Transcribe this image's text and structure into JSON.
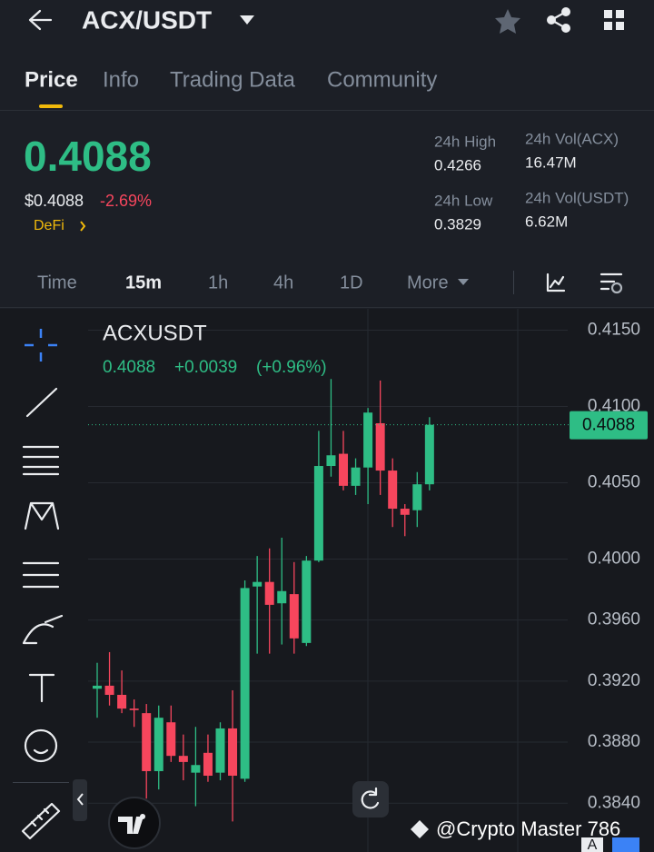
{
  "header": {
    "title": "ACX/USDT"
  },
  "tabs": [
    "Price",
    "Info",
    "Trading Data",
    "Community"
  ],
  "ticker": {
    "price": "0.4088",
    "price_usd": "$0.4088",
    "change": "-2.69%",
    "tag": "DeFi"
  },
  "stats": [
    {
      "label": "24h High",
      "value": "0.4266"
    },
    {
      "label": "24h Vol(ACX)",
      "value": "16.47M"
    },
    {
      "label": "24h Low",
      "value": "0.3829"
    },
    {
      "label": "24h Vol(USDT)",
      "value": "6.62M"
    }
  ],
  "intervals": [
    "Time",
    "15m",
    "1h",
    "4h",
    "1D",
    "More"
  ],
  "chart_data": {
    "type": "candlestick",
    "symbol": "ACXUSDT",
    "legend": [
      "0.4088",
      "+0.0039",
      "(+0.96%)"
    ],
    "up_color": "#2ebd85",
    "down_color": "#f6465d",
    "open": [
      0.3915,
      0.3917,
      0.3911,
      0.3902,
      0.3899,
      0.3861,
      0.3893,
      0.3871,
      0.386,
      0.3873,
      0.386,
      0.3889,
      0.3856,
      0.3982,
      0.3985,
      0.3971,
      0.3977,
      0.3945,
      0.3999,
      0.4061,
      0.4069,
      0.4048,
      0.406,
      0.4089,
      0.4058,
      0.4033,
      0.4032,
      0.4049
    ],
    "high": [
      0.3932,
      0.3939,
      0.3927,
      0.3908,
      0.3905,
      0.3904,
      0.3904,
      0.3885,
      0.389,
      0.3885,
      0.3893,
      0.3914,
      0.3986,
      0.4002,
      0.4007,
      0.4014,
      0.3998,
      0.4002,
      0.4084,
      0.4118,
      0.4084,
      0.4066,
      0.4099,
      0.4117,
      0.4066,
      0.4036,
      0.4057,
      0.4093
    ],
    "low": [
      0.3896,
      0.3904,
      0.3899,
      0.389,
      0.3843,
      0.3849,
      0.3867,
      0.3855,
      0.3838,
      0.3854,
      0.3855,
      0.3828,
      0.3854,
      0.3938,
      0.3938,
      0.3944,
      0.3938,
      0.3943,
      0.3998,
      0.4054,
      0.4045,
      0.4042,
      0.4036,
      0.4042,
      0.4021,
      0.4015,
      0.4021,
      0.4045
    ],
    "close": [
      0.3917,
      0.3911,
      0.3902,
      0.3901,
      0.3861,
      0.3896,
      0.3871,
      0.3867,
      0.3865,
      0.3858,
      0.3889,
      0.3858,
      0.3981,
      0.3985,
      0.397,
      0.3979,
      0.3948,
      0.3999,
      0.4061,
      0.4068,
      0.4048,
      0.406,
      0.4096,
      0.4058,
      0.4033,
      0.4029,
      0.4049,
      0.4088
    ],
    "last_price": 0.4088,
    "ylim": [
      0.3808,
      0.4164
    ],
    "yticks": [
      {
        "value": 0.415,
        "label": "0.4150"
      },
      {
        "value": 0.41,
        "label": "0.4100"
      },
      {
        "value": 0.405,
        "label": "0.4050"
      },
      {
        "value": 0.4,
        "label": "0.4000"
      },
      {
        "value": 0.396,
        "label": "0.3960"
      },
      {
        "value": 0.392,
        "label": "0.3920"
      },
      {
        "value": 0.388,
        "label": "0.3880"
      },
      {
        "value": 0.384,
        "label": "0.3840"
      }
    ],
    "grid": true
  },
  "watermark": "@Crypto Master 786",
  "badge": "A"
}
